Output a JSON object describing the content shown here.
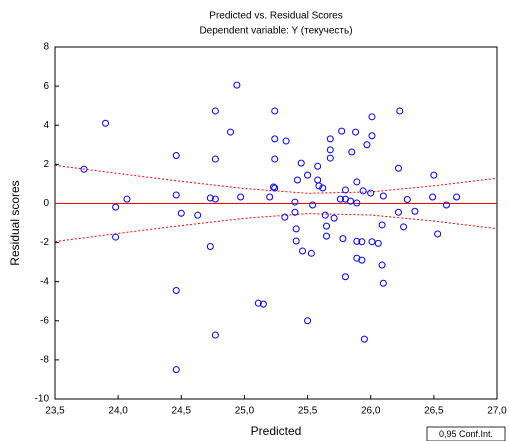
{
  "chart_data": {
    "type": "scatter",
    "title": "Predicted vs. Residual Scores",
    "subtitle": "Dependent variable: Y (текучесть)",
    "x_label": "Predicted",
    "y_label": "Residual scores",
    "color": "#0000ff",
    "x": [
      23.73,
      23.9,
      24.07,
      23.98,
      23.98,
      24.46,
      24.46,
      24.5,
      24.63,
      24.73,
      24.77,
      24.73,
      24.77,
      24.77,
      24.89,
      24.94,
      24.46,
      24.46,
      24.77,
      24.97,
      25.11,
      25.15,
      25.2,
      25.23,
      25.24,
      25.24,
      25.24,
      25.24,
      25.33,
      25.32,
      25.4,
      25.4,
      25.41,
      25.41,
      25.46,
      25.42,
      25.45,
      25.5,
      25.5,
      25.53,
      25.54,
      25.58,
      25.58,
      25.62,
      25.59,
      25.64,
      25.65,
      25.65,
      25.68,
      25.68,
      25.68,
      25.71,
      25.77,
      25.76,
      25.8,
      25.78,
      25.8,
      25.8,
      25.85,
      25.84,
      25.88,
      25.89,
      25.89,
      25.89,
      25.89,
      25.93,
      25.93,
      25.94,
      25.95,
      25.97,
      26.0,
      26.01,
      26.01,
      26.01,
      26.06,
      26.09,
      26.09,
      26.1,
      26.1,
      26.22,
      26.22,
      26.23,
      26.26,
      26.29,
      26.35,
      26.49,
      26.5,
      26.53,
      26.6,
      26.68
    ],
    "values": [
      1.75,
      4.1,
      0.22,
      -0.19,
      -1.72,
      2.45,
      0.43,
      -0.5,
      -0.6,
      0.28,
      0.22,
      -2.2,
      4.73,
      2.27,
      3.65,
      6.05,
      -4.45,
      -8.5,
      -6.73,
      0.33,
      -5.1,
      -5.15,
      0.33,
      0.84,
      4.73,
      3.3,
      2.27,
      0.79,
      3.19,
      -0.7,
      -0.45,
      0.07,
      -1.3,
      -1.92,
      -2.43,
      1.2,
      2.06,
      -6.0,
      1.45,
      -2.55,
      -0.08,
      1.2,
      1.9,
      0.79,
      0.9,
      -0.6,
      -1.16,
      -1.67,
      3.3,
      2.74,
      2.32,
      -0.75,
      3.7,
      0.22,
      0.22,
      -1.8,
      0.69,
      -3.75,
      2.63,
      0.12,
      3.65,
      1.1,
      0.02,
      -1.94,
      -2.8,
      -2.9,
      -1.96,
      0.64,
      -6.94,
      3.0,
      0.53,
      4.43,
      3.46,
      -1.96,
      -2.04,
      -1.1,
      -3.15,
      -4.08,
      0.38,
      -0.45,
      1.8,
      4.73,
      -1.2,
      0.2,
      -0.4,
      0.33,
      1.45,
      -1.56,
      -0.08,
      0.33
    ],
    "fit_line": {
      "color": "#ff0000",
      "x": [
        23.5,
        27.0
      ],
      "values": [
        0,
        0
      ]
    },
    "confidence_band": {
      "label": "0,95 Conf.Int.",
      "color": "#ff0000",
      "x": [
        23.5,
        24.0,
        24.5,
        25.0,
        25.5,
        26.0,
        26.5,
        27.0
      ],
      "upper": [
        1.95,
        1.53,
        1.13,
        0.76,
        0.52,
        0.59,
        0.9,
        1.29
      ],
      "lower": [
        -1.95,
        -1.53,
        -1.13,
        -0.76,
        -0.52,
        -0.59,
        -0.9,
        -1.29
      ]
    },
    "xlim": [
      23.5,
      27.0
    ],
    "xticks": [
      {
        "value": 23.5,
        "label": "23,5"
      },
      {
        "value": 24.0,
        "label": "24,0"
      },
      {
        "value": 24.5,
        "label": "24,5"
      },
      {
        "value": 25.0,
        "label": "25,0"
      },
      {
        "value": 25.5,
        "label": "25,5"
      },
      {
        "value": 26.0,
        "label": "26,0"
      },
      {
        "value": 26.5,
        "label": "26,5"
      },
      {
        "value": 27.0,
        "label": "27,0"
      }
    ],
    "ylim": [
      -10,
      8
    ],
    "yticks": [
      -10,
      -8,
      -6,
      -4,
      -2,
      0,
      2,
      4,
      6,
      8
    ]
  }
}
